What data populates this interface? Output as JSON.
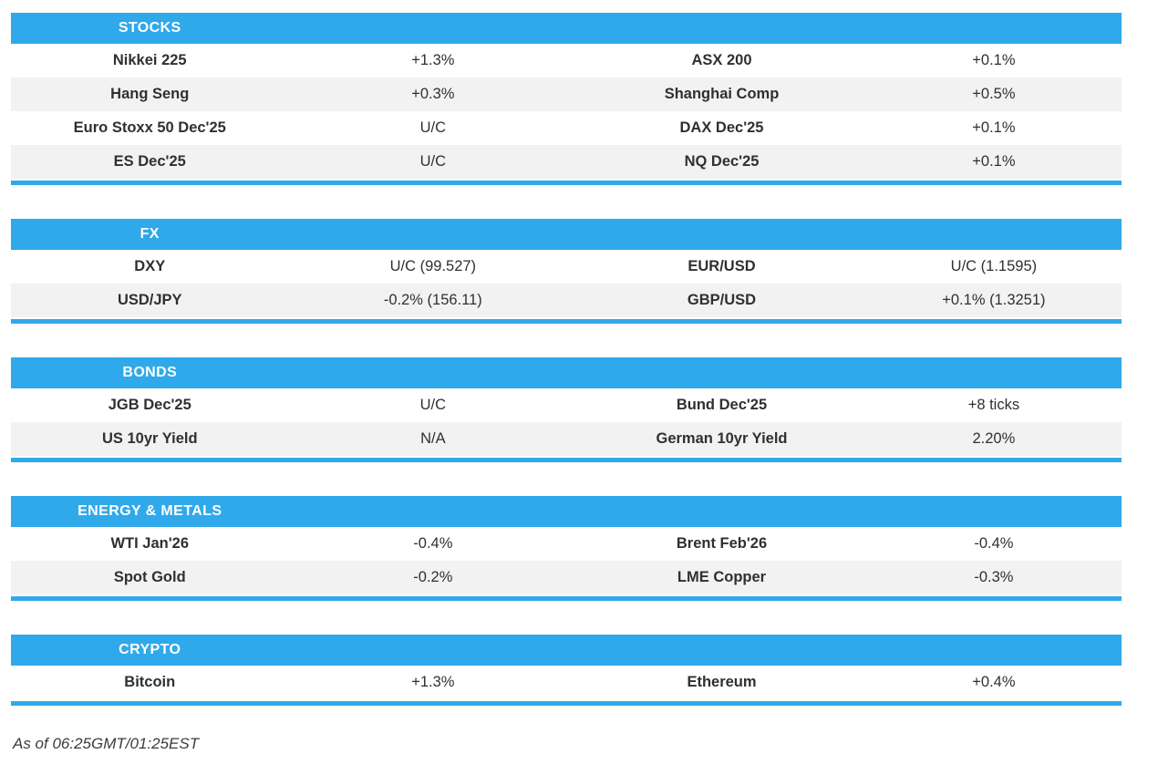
{
  "colors": {
    "accent": "#30a9ea",
    "row_alt": "#f2f2f2",
    "header_text": "#ffffff",
    "body_text": "#2e3033"
  },
  "footer": {
    "as_of": "As of 06:25GMT/01:25EST"
  },
  "sections": [
    {
      "title": "STOCKS",
      "rows": [
        {
          "l1": "Nikkei 225",
          "v1": "+1.3%",
          "l2": "ASX 200",
          "v2": "+0.1%"
        },
        {
          "l1": "Hang Seng",
          "v1": "+0.3%",
          "l2": "Shanghai Comp",
          "v2": "+0.5%"
        },
        {
          "l1": "Euro Stoxx 50 Dec'25",
          "v1": "U/C",
          "l2": "DAX Dec'25",
          "v2": "+0.1%"
        },
        {
          "l1": "ES Dec'25",
          "v1": "U/C",
          "l2": "NQ Dec'25",
          "v2": "+0.1%"
        }
      ]
    },
    {
      "title": "FX",
      "rows": [
        {
          "l1": "DXY",
          "v1": "U/C (99.527)",
          "l2": "EUR/USD",
          "v2": "U/C (1.1595)"
        },
        {
          "l1": "USD/JPY",
          "v1": "-0.2% (156.11)",
          "l2": "GBP/USD",
          "v2": "+0.1% (1.3251)"
        }
      ]
    },
    {
      "title": "BONDS",
      "rows": [
        {
          "l1": "JGB Dec'25",
          "v1": "U/C",
          "l2": "Bund Dec'25",
          "v2": "+8 ticks"
        },
        {
          "l1": "US 10yr Yield",
          "v1": "N/A",
          "l2": "German 10yr Yield",
          "v2": "2.20%"
        }
      ]
    },
    {
      "title": "ENERGY & METALS",
      "rows": [
        {
          "l1": "WTI Jan'26",
          "v1": "-0.4%",
          "l2": "Brent Feb'26",
          "v2": "-0.4%"
        },
        {
          "l1": "Spot Gold",
          "v1": "-0.2%",
          "l2": "LME Copper",
          "v2": "-0.3%"
        }
      ]
    },
    {
      "title": "CRYPTO",
      "rows": [
        {
          "l1": "Bitcoin",
          "v1": "+1.3%",
          "l2": "Ethereum",
          "v2": "+0.4%"
        }
      ]
    }
  ]
}
